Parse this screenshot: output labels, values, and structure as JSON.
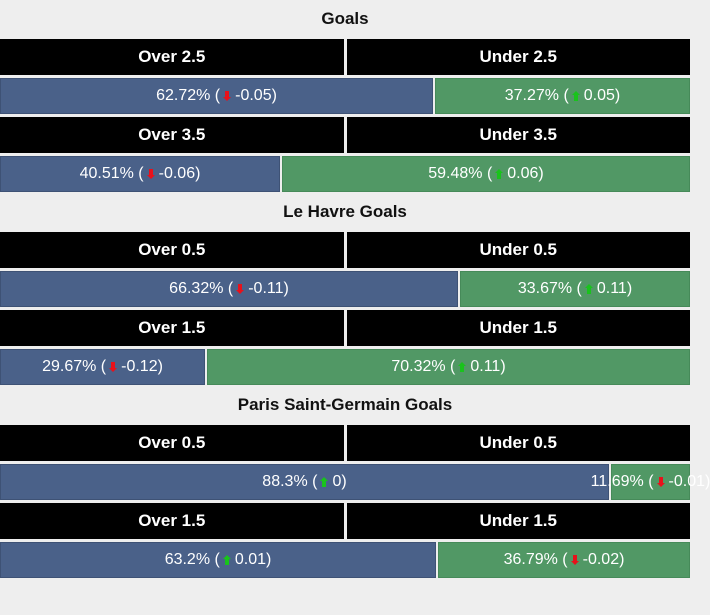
{
  "colors": {
    "background": "#eeeeee",
    "header_bg": "#000000",
    "over_bar": "#4a6189",
    "under_bar": "#519865",
    "arrow_down": "#e8111b",
    "arrow_up": "#19c31c"
  },
  "sections": [
    {
      "title": "Goals",
      "markets": [
        {
          "over_label": "Over 2.5",
          "under_label": "Under 2.5",
          "over_value": "62.72%",
          "over_change": "-0.05",
          "over_dir": "down",
          "under_value": "37.27%",
          "under_change": "0.05",
          "under_dir": "up",
          "over_pct": 62.72
        },
        {
          "over_label": "Over 3.5",
          "under_label": "Under 3.5",
          "over_value": "40.51%",
          "over_change": "-0.06",
          "over_dir": "down",
          "under_value": "59.48%",
          "under_change": "0.06",
          "under_dir": "up",
          "over_pct": 40.51
        }
      ]
    },
    {
      "title": "Le Havre Goals",
      "markets": [
        {
          "over_label": "Over 0.5",
          "under_label": "Under 0.5",
          "over_value": "66.32%",
          "over_change": "-0.11",
          "over_dir": "down",
          "under_value": "33.67%",
          "under_change": "0.11",
          "under_dir": "up",
          "over_pct": 66.32
        },
        {
          "over_label": "Over 1.5",
          "under_label": "Under 1.5",
          "over_value": "29.67%",
          "over_change": "-0.12",
          "over_dir": "down",
          "under_value": "70.32%",
          "under_change": "0.11",
          "under_dir": "up",
          "over_pct": 29.67
        }
      ]
    },
    {
      "title": "Paris Saint-Germain Goals",
      "markets": [
        {
          "over_label": "Over 0.5",
          "under_label": "Under 0.5",
          "over_value": "88.3%",
          "over_change": "0",
          "over_dir": "up",
          "under_value": "11.69%",
          "under_change": "-0.01",
          "under_dir": "down",
          "over_pct": 88.3
        },
        {
          "over_label": "Over 1.5",
          "under_label": "Under 1.5",
          "over_value": "63.2%",
          "over_change": "0.01",
          "over_dir": "up",
          "under_value": "36.79%",
          "under_change": "-0.02",
          "under_dir": "down",
          "over_pct": 63.2
        }
      ]
    }
  ],
  "chart_data": {
    "type": "bar",
    "orientation": "horizontal-stacked",
    "title": "",
    "groups": [
      "Goals",
      "Le Havre Goals",
      "Paris Saint-Germain Goals"
    ],
    "categories": [
      "Goals Over/Under 2.5",
      "Goals Over/Under 3.5",
      "Le Havre Goals Over/Under 0.5",
      "Le Havre Goals Over/Under 1.5",
      "Paris Saint-Germain Goals Over/Under 0.5",
      "Paris Saint-Germain Goals Over/Under 1.5"
    ],
    "series": [
      {
        "name": "Over",
        "values": [
          62.72,
          40.51,
          66.32,
          29.67,
          88.3,
          63.2
        ],
        "changes": [
          -0.05,
          -0.06,
          -0.11,
          -0.12,
          0,
          0.01
        ]
      },
      {
        "name": "Under",
        "values": [
          37.27,
          59.48,
          33.67,
          70.32,
          11.69,
          36.79
        ],
        "changes": [
          0.05,
          0.06,
          0.11,
          0.11,
          -0.01,
          -0.02
        ]
      }
    ],
    "xlim": [
      0,
      100
    ],
    "unit": "%",
    "grid": false,
    "legend": "none"
  }
}
